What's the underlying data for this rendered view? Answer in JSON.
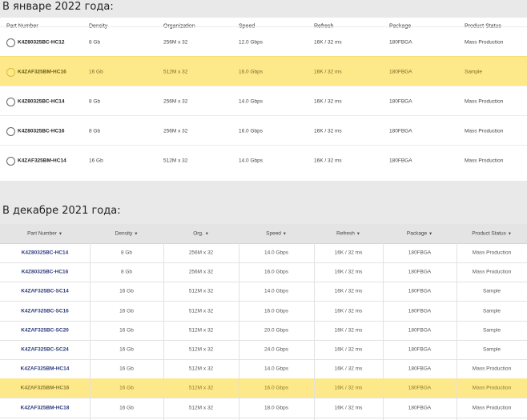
{
  "section1": {
    "heading": "В январе 2022 года:",
    "headers": [
      "Part Number",
      "Density",
      "Organization",
      "Speed",
      "Refresh",
      "Package",
      "Product Status"
    ],
    "rows": [
      {
        "part": "K4Z80325BC-HC12",
        "density": "8 Gb",
        "org": "256M x 32",
        "speed": "12.0 Gbps",
        "refresh": "16K / 32 ms",
        "package": "180FBGA",
        "status": "Mass Production",
        "highlight": false
      },
      {
        "part": "K4ZAF325BM-HC16",
        "density": "16 Gb",
        "org": "512M x 32",
        "speed": "16.0 Gbps",
        "refresh": "16K / 32 ms",
        "package": "180FBGA",
        "status": "Sample",
        "highlight": true
      },
      {
        "part": "K4Z80325BC-HC14",
        "density": "8 Gb",
        "org": "256M x 32",
        "speed": "14.0 Gbps",
        "refresh": "16K / 32 ms",
        "package": "180FBGA",
        "status": "Mass Production",
        "highlight": false
      },
      {
        "part": "K4Z80325BC-HC16",
        "density": "8 Gb",
        "org": "256M x 32",
        "speed": "16.0 Gbps",
        "refresh": "16K / 32 ms",
        "package": "180FBGA",
        "status": "Mass Production",
        "highlight": false
      },
      {
        "part": "K4ZAF325BM-HC14",
        "density": "16 Gb",
        "org": "512M x 32",
        "speed": "14.0 Gbps",
        "refresh": "16K / 32 ms",
        "package": "180FBGA",
        "status": "Mass Production",
        "highlight": false
      }
    ]
  },
  "section2": {
    "heading": "В декабре 2021 года:",
    "headers": [
      "Part Number",
      "Density",
      "Org.",
      "Speed",
      "Refresh",
      "Package",
      "Product Status"
    ],
    "rows": [
      {
        "part": "K4Z80325BC-HC14",
        "density": "8 Gb",
        "org": "256M x 32",
        "speed": "14.0 Gbps",
        "refresh": "16K / 32 ms",
        "package": "180FBGA",
        "status": "Mass Production",
        "highlight": false
      },
      {
        "part": "K4Z80325BC-HC16",
        "density": "8 Gb",
        "org": "256M x 32",
        "speed": "16.0 Gbps",
        "refresh": "16K / 32 ms",
        "package": "180FBGA",
        "status": "Mass Production",
        "highlight": false
      },
      {
        "part": "K4ZAF325BC-SC14",
        "density": "16 Gb",
        "org": "512M x 32",
        "speed": "14.0 Gbps",
        "refresh": "16K / 32 ms",
        "package": "180FBGA",
        "status": "Sample",
        "highlight": false
      },
      {
        "part": "K4ZAF325BC-SC16",
        "density": "16 Gb",
        "org": "512M x 32",
        "speed": "16.0 Gbps",
        "refresh": "16K / 32 ms",
        "package": "180FBGA",
        "status": "Sample",
        "highlight": false
      },
      {
        "part": "K4ZAF325BC-SC20",
        "density": "16 Gb",
        "org": "512M x 32",
        "speed": "20.0 Gbps",
        "refresh": "16K / 32 ms",
        "package": "180FBGA",
        "status": "Sample",
        "highlight": false
      },
      {
        "part": "K4ZAF325BC-SC24",
        "density": "16 Gb",
        "org": "512M x 32",
        "speed": "24.0 Gbps",
        "refresh": "16K / 32 ms",
        "package": "180FBGA",
        "status": "Sample",
        "highlight": false
      },
      {
        "part": "K4ZAF325BM-HC14",
        "density": "16 Gb",
        "org": "512M x 32",
        "speed": "14.0 Gbps",
        "refresh": "16K / 32 ms",
        "package": "180FBGA",
        "status": "Mass Production",
        "highlight": false
      },
      {
        "part": "K4ZAF325BM-HC16",
        "density": "16 Gb",
        "org": "512M x 32",
        "speed": "16.0 Gbps",
        "refresh": "16K / 32 ms",
        "package": "180FBGA",
        "status": "Mass Production",
        "highlight": true
      },
      {
        "part": "K4ZAF325BM-HC18",
        "density": "16 Gb",
        "org": "512M x 32",
        "speed": "18.0 Gbps",
        "refresh": "16K / 32 ms",
        "package": "180FBGA",
        "status": "Mass Production",
        "highlight": false
      }
    ]
  },
  "colors": {
    "highlight": "#fde98a",
    "part_link": "#2b3a7a"
  },
  "icons": {
    "sort": "sort-down-arrow-icon",
    "select": "radio-icon"
  }
}
